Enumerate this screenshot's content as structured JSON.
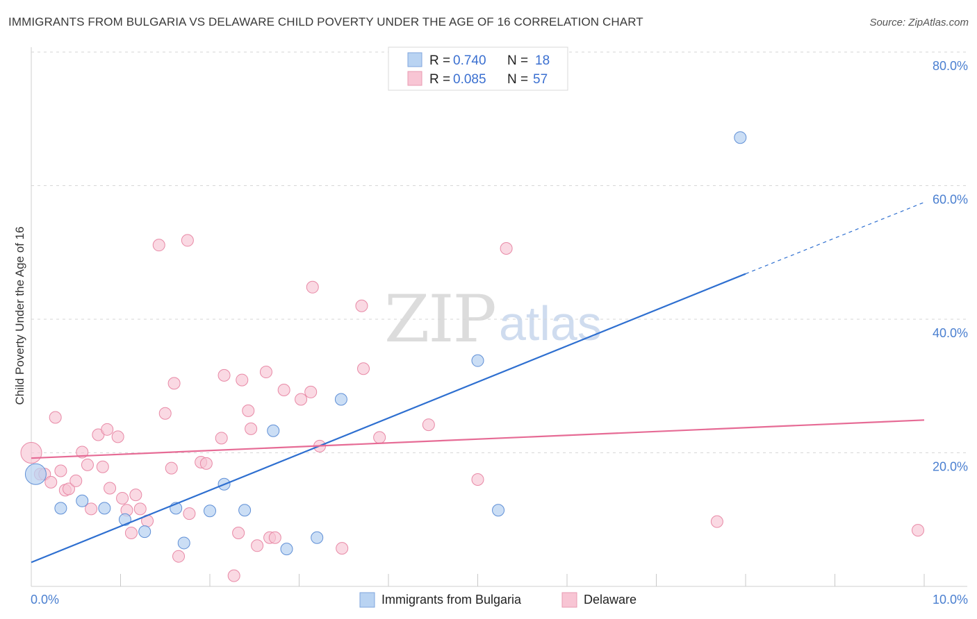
{
  "header": {
    "title": "IMMIGRANTS FROM BULGARIA VS DELAWARE CHILD POVERTY UNDER THE AGE OF 16 CORRELATION CHART",
    "source": "Source: ZipAtlas.com"
  },
  "watermark": {
    "part1": "ZIP",
    "part2": "atlas"
  },
  "legend": {
    "r_label": "R =",
    "n_label": "N =",
    "rows": [
      {
        "r": "0.740",
        "n": "18",
        "color": "#a8c8f0"
      },
      {
        "r": "0.085",
        "n": "57",
        "color": "#f7b6c8"
      }
    ]
  },
  "colors": {
    "blue_fill": "#b9d3f2",
    "blue_stroke": "#5f8fd6",
    "blue_line": "#2e6fd0",
    "pink_fill": "#f8c5d4",
    "pink_stroke": "#e889a6",
    "pink_line": "#e66b95"
  },
  "chart_data": {
    "type": "scatter",
    "title": "IMMIGRANTS FROM BULGARIA VS DELAWARE CHILD POVERTY UNDER THE AGE OF 16 CORRELATION CHART",
    "xlabel": "",
    "ylabel": "Child Poverty Under the Age of 16",
    "xlim": [
      0,
      10
    ],
    "ylim": [
      0,
      80
    ],
    "x_tick_labels": [
      "0.0%",
      "10.0%"
    ],
    "y_ticks": [
      20,
      40,
      60,
      80
    ],
    "y_tick_labels": [
      "20.0%",
      "40.0%",
      "60.0%",
      "80.0%"
    ],
    "series": [
      {
        "name": "Immigrants from Bulgaria",
        "color": "blue",
        "r": 0.74,
        "n": 18,
        "points": [
          [
            0.05,
            16.8
          ],
          [
            0.33,
            11.7
          ],
          [
            0.57,
            12.8
          ],
          [
            0.82,
            11.7
          ],
          [
            1.05,
            10.0
          ],
          [
            1.27,
            8.2
          ],
          [
            1.62,
            11.7
          ],
          [
            1.71,
            6.5
          ],
          [
            2.0,
            11.3
          ],
          [
            2.16,
            15.3
          ],
          [
            2.39,
            11.4
          ],
          [
            2.71,
            23.3
          ],
          [
            2.86,
            5.6
          ],
          [
            3.2,
            7.3
          ],
          [
            3.47,
            28.0
          ],
          [
            5.0,
            33.8
          ],
          [
            5.23,
            11.4
          ],
          [
            7.94,
            67.2
          ]
        ],
        "trend": {
          "x0": 0,
          "y0": 3.6,
          "x1": 8.0,
          "y1": 46.8,
          "dash_x1": 10.0,
          "dash_y1": 57.5
        }
      },
      {
        "name": "Delaware",
        "color": "pink",
        "r": 0.085,
        "n": 57,
        "points": [
          [
            0.0,
            20.0
          ],
          [
            0.1,
            16.8
          ],
          [
            0.15,
            16.8
          ],
          [
            0.22,
            15.6
          ],
          [
            0.27,
            25.3
          ],
          [
            0.33,
            17.3
          ],
          [
            0.38,
            14.4
          ],
          [
            0.42,
            14.6
          ],
          [
            0.5,
            15.8
          ],
          [
            0.57,
            20.1
          ],
          [
            0.63,
            18.2
          ],
          [
            0.67,
            11.6
          ],
          [
            0.75,
            22.7
          ],
          [
            0.8,
            17.9
          ],
          [
            0.85,
            23.5
          ],
          [
            0.88,
            14.7
          ],
          [
            0.97,
            22.4
          ],
          [
            1.02,
            13.2
          ],
          [
            1.07,
            11.4
          ],
          [
            1.12,
            8.0
          ],
          [
            1.17,
            13.7
          ],
          [
            1.22,
            11.6
          ],
          [
            1.3,
            9.8
          ],
          [
            1.43,
            51.1
          ],
          [
            1.5,
            25.9
          ],
          [
            1.57,
            17.7
          ],
          [
            1.6,
            30.4
          ],
          [
            1.65,
            4.5
          ],
          [
            1.75,
            51.8
          ],
          [
            1.77,
            10.9
          ],
          [
            1.9,
            18.6
          ],
          [
            1.96,
            18.4
          ],
          [
            2.13,
            22.2
          ],
          [
            2.16,
            31.6
          ],
          [
            2.27,
            1.6
          ],
          [
            2.32,
            8.0
          ],
          [
            2.36,
            30.9
          ],
          [
            2.43,
            26.3
          ],
          [
            2.46,
            23.6
          ],
          [
            2.53,
            6.1
          ],
          [
            2.63,
            32.1
          ],
          [
            2.67,
            7.3
          ],
          [
            2.73,
            7.3
          ],
          [
            2.83,
            29.4
          ],
          [
            3.02,
            28.0
          ],
          [
            3.13,
            29.1
          ],
          [
            3.15,
            44.8
          ],
          [
            3.23,
            21.0
          ],
          [
            3.48,
            5.7
          ],
          [
            3.7,
            42.0
          ],
          [
            3.72,
            32.6
          ],
          [
            3.9,
            22.3
          ],
          [
            4.45,
            24.2
          ],
          [
            5.0,
            16.0
          ],
          [
            5.32,
            50.6
          ],
          [
            7.68,
            9.7
          ],
          [
            9.93,
            8.4
          ]
        ],
        "trend": {
          "x0": 0,
          "y0": 19.2,
          "x1": 10.0,
          "y1": 24.9
        }
      }
    ]
  },
  "bottom_legend": {
    "items": [
      {
        "label": "Immigrants from Bulgaria",
        "color": "blue"
      },
      {
        "label": "Delaware",
        "color": "pink"
      }
    ]
  }
}
